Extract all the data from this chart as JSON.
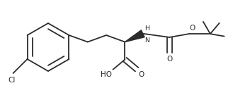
{
  "bg_color": "#ffffff",
  "bond_color": "#2c2c2c",
  "line_width": 1.3,
  "font_size": 7.5,
  "figsize": [
    3.53,
    1.52
  ],
  "dpi": 100,
  "cl_label": "Cl",
  "ho_label": "HO",
  "o_label": "O",
  "nh_label": "H\nN",
  "xlim": [
    0,
    353
  ],
  "ylim": [
    0,
    152
  ]
}
